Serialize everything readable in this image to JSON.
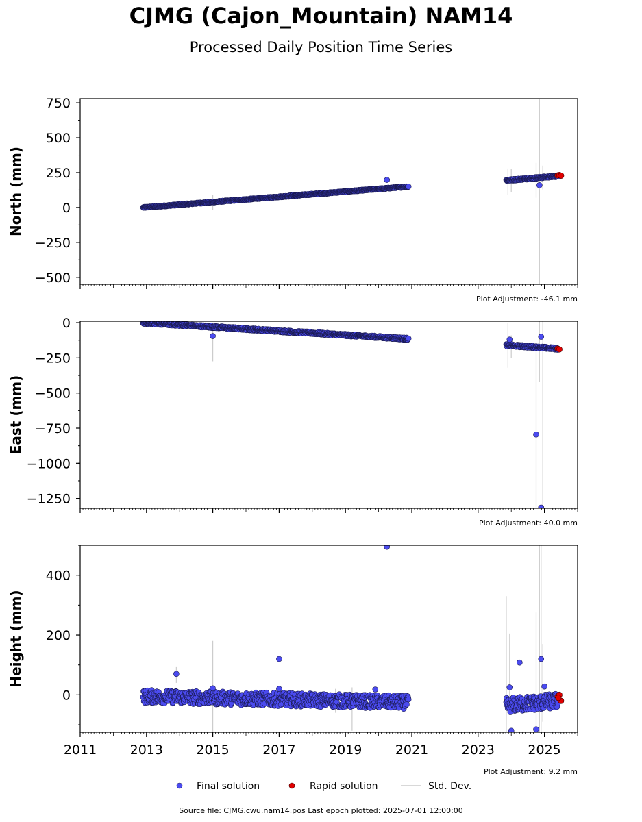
{
  "title": "CJMG (Cajon_Mountain) NAM14",
  "subtitle": "Processed Daily Position Time Series",
  "source": "Source file: CJMG.cwu.nam14.pos  Last epoch plotted: 2025-07-01 12:00:00",
  "colors": {
    "final": "#4b4bf0",
    "rapid": "#e00000",
    "stddev": "#cccccc"
  },
  "chart_data": [
    {
      "type": "scatter",
      "ylabel": "North (mm)",
      "xlim": [
        2011,
        2026
      ],
      "ylim": [
        -550,
        780
      ],
      "yticks": [
        750,
        500,
        250,
        0,
        -250,
        -500
      ],
      "ytick_labels": [
        "750",
        "500",
        "250",
        "0",
        "−250",
        "−500"
      ],
      "adjustment": "Plot Adjustment: -46.1 mm",
      "final_segments": [
        {
          "x0": 2012.9,
          "x1": 2020.9,
          "y0": 0,
          "y1": 150,
          "wiggle": 4
        },
        {
          "x0": 2023.85,
          "x1": 2025.4,
          "y0": 195,
          "y1": 225,
          "wiggle": 6
        }
      ],
      "final_points": [
        [
          2020.25,
          198
        ],
        [
          2024.85,
          160
        ]
      ],
      "rapid_points": [
        [
          2025.4,
          230
        ],
        [
          2025.45,
          233
        ],
        [
          2025.5,
          228
        ]
      ],
      "stddev_bars": [
        [
          2015.0,
          -20,
          90
        ],
        [
          2023.9,
          90,
          280
        ],
        [
          2024.0,
          110,
          275
        ],
        [
          2024.75,
          70,
          320
        ],
        [
          2024.85,
          -550,
          780
        ],
        [
          2024.95,
          130,
          300
        ]
      ]
    },
    {
      "type": "scatter",
      "ylabel": "East (mm)",
      "xlim": [
        2011,
        2026
      ],
      "ylim": [
        -1320,
        10
      ],
      "yticks": [
        0,
        -250,
        -500,
        -750,
        -1000,
        -1250
      ],
      "ytick_labels": [
        "0",
        "−250",
        "−500",
        "−750",
        "−1000",
        "−1250"
      ],
      "adjustment": "Plot Adjustment: 40.0 mm",
      "final_segments": [
        {
          "x0": 2012.9,
          "x1": 2020.9,
          "y0": 0,
          "y1": -115,
          "wiggle": 8
        },
        {
          "x0": 2023.85,
          "x1": 2025.4,
          "y0": -160,
          "y1": -185,
          "wiggle": 8
        }
      ],
      "final_points": [
        [
          2015.0,
          -95
        ],
        [
          2023.95,
          -120
        ],
        [
          2024.75,
          -795
        ],
        [
          2024.9,
          -100
        ],
        [
          2024.9,
          -1315
        ]
      ],
      "rapid_points": [
        [
          2025.4,
          -185
        ],
        [
          2025.45,
          -190
        ]
      ],
      "stddev_bars": [
        [
          2015.0,
          -275,
          0
        ],
        [
          2023.9,
          -320,
          0
        ],
        [
          2024.0,
          -250,
          -90
        ],
        [
          2024.75,
          -1320,
          -160
        ],
        [
          2024.85,
          -420,
          10
        ],
        [
          2024.95,
          -1320,
          10
        ]
      ]
    },
    {
      "type": "scatter",
      "ylabel": "Height (mm)",
      "xlim": [
        2011,
        2026
      ],
      "ylim": [
        -125,
        500
      ],
      "yticks": [
        400,
        200,
        0
      ],
      "ytick_labels": [
        "400",
        "200",
        "0"
      ],
      "adjustment": "Plot Adjustment: 9.2 mm",
      "xticks": [
        2011,
        2013,
        2015,
        2017,
        2019,
        2021,
        2023,
        2025
      ],
      "xtick_labels": [
        "2011",
        "2013",
        "2015",
        "2017",
        "2019",
        "2021",
        "2023",
        "2025"
      ],
      "final_segments": [
        {
          "x0": 2012.9,
          "x1": 2020.9,
          "y0": -5,
          "y1": -25,
          "wiggle": 22
        },
        {
          "x0": 2023.85,
          "x1": 2025.4,
          "y0": -35,
          "y1": -20,
          "wiggle": 25
        }
      ],
      "final_points": [
        [
          2013.9,
          70
        ],
        [
          2015.0,
          22
        ],
        [
          2017.0,
          120
        ],
        [
          2017.0,
          20
        ],
        [
          2019.9,
          18
        ],
        [
          2020.25,
          495
        ],
        [
          2023.95,
          25
        ],
        [
          2024.25,
          108
        ],
        [
          2024.9,
          120
        ],
        [
          2024.0,
          -120
        ],
        [
          2024.75,
          -115
        ],
        [
          2025.0,
          28
        ]
      ],
      "rapid_points": [
        [
          2025.4,
          -5
        ],
        [
          2025.45,
          0
        ],
        [
          2025.5,
          -20
        ],
        [
          2025.42,
          -10
        ]
      ],
      "stddev_bars": [
        [
          2013.9,
          40,
          95
        ],
        [
          2015.0,
          -125,
          180
        ],
        [
          2018.7,
          -60,
          20
        ],
        [
          2019.2,
          -120,
          25
        ],
        [
          2023.85,
          -125,
          330
        ],
        [
          2023.95,
          -60,
          205
        ],
        [
          2024.75,
          -125,
          275
        ],
        [
          2024.85,
          -125,
          500
        ],
        [
          2024.9,
          -125,
          500
        ],
        [
          2024.95,
          -90,
          170
        ]
      ]
    }
  ],
  "legend": {
    "items": [
      {
        "label": "Final solution",
        "kind": "final"
      },
      {
        "label": "Rapid solution",
        "kind": "rapid"
      },
      {
        "label": "Std. Dev.",
        "kind": "stddev"
      }
    ]
  }
}
